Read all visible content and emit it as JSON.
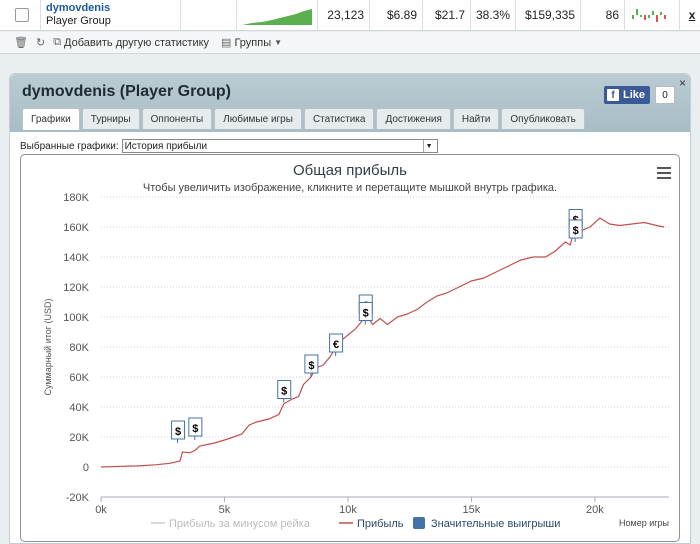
{
  "top_row": {
    "player_name": "dymovdenis",
    "player_group": "Player Group",
    "games": "23,123",
    "avg_buyin": "$6.89",
    "abi": "$21.7",
    "roi": "38.3%",
    "profit": "$159,335",
    "rating": "86",
    "close_link": "x"
  },
  "toolbar": {
    "add_stats": "Добавить другую статистику",
    "groups": "Группы"
  },
  "panel": {
    "title": "dymovdenis (Player Group)",
    "close": "×",
    "like_label": "Like",
    "like_count": "0",
    "tabs": [
      {
        "label": "Графики",
        "active": true
      },
      {
        "label": "Турниры"
      },
      {
        "label": "Оппоненты"
      },
      {
        "label": "Любимые игры"
      },
      {
        "label": "Статистика"
      },
      {
        "label": "Достижения"
      },
      {
        "label": "Найти"
      },
      {
        "label": "Опубликовать"
      }
    ],
    "selected_label": "Выбранные графики:",
    "selected_value": "История прибыли"
  },
  "chart_data": {
    "type": "line",
    "title": "Общая прибыль",
    "subtitle": "Чтобы увеличить изображение, кликните и перетащите мышкой внутрь графика.",
    "ylabel": "Суммарный итог (USD)",
    "xlabel": "Номер игры",
    "ylim": [
      -20000,
      180000
    ],
    "xlim": [
      0,
      23000
    ],
    "y_ticks": [
      "-20K",
      "0",
      "20K",
      "40K",
      "60K",
      "80K",
      "100K",
      "120K",
      "140K",
      "160K",
      "180K"
    ],
    "x_ticks": [
      "0k",
      "5k",
      "10k",
      "15k",
      "20k"
    ],
    "legend": [
      "Прибыль за минусом рейка",
      "Прибыль",
      "Значительные выигрыши"
    ],
    "series": [
      {
        "name": "Прибыль",
        "color": "#c0504d",
        "x": [
          0,
          800,
          1500,
          2200,
          2800,
          3200,
          3300,
          3600,
          3800,
          4000,
          4600,
          5200,
          5700,
          6000,
          6300,
          6800,
          7200,
          7400,
          7700,
          8000,
          8200,
          8500,
          8700,
          9000,
          9300,
          9500,
          9700,
          10000,
          10300,
          10600,
          10700,
          10800,
          11000,
          11300,
          11600,
          12000,
          12400,
          12800,
          13200,
          13600,
          14000,
          14500,
          15000,
          15500,
          16000,
          16500,
          17000,
          17500,
          18000,
          18400,
          18800,
          19000,
          19200,
          19300,
          19500,
          19800,
          20200,
          20600,
          21000,
          21500,
          22000,
          22500,
          22800
        ],
        "y": [
          0,
          500,
          700,
          1500,
          2500,
          4000,
          10000,
          9500,
          11000,
          14000,
          16000,
          19000,
          22000,
          28000,
          30000,
          32000,
          35000,
          42000,
          45000,
          47000,
          55000,
          60000,
          66000,
          68000,
          74000,
          80000,
          84000,
          88000,
          92000,
          98000,
          106000,
          100000,
          95000,
          99000,
          95000,
          100000,
          102000,
          105000,
          110000,
          114000,
          116000,
          120000,
          124000,
          126000,
          130000,
          134000,
          138000,
          140000,
          140000,
          144000,
          150000,
          148000,
          160000,
          157000,
          158000,
          160000,
          166000,
          162000,
          161000,
          162000,
          163000,
          161000,
          160000
        ]
      }
    ],
    "big_wins": [
      {
        "x": 3100,
        "y": 16000,
        "symbol": "$"
      },
      {
        "x": 3800,
        "y": 18000,
        "symbol": "$"
      },
      {
        "x": 7400,
        "y": 43000,
        "symbol": "$"
      },
      {
        "x": 8500,
        "y": 60000,
        "symbol": "$"
      },
      {
        "x": 9500,
        "y": 74000,
        "symbol": "€"
      },
      {
        "x": 10700,
        "y": 100000,
        "symbol": "€"
      },
      {
        "x": 10700,
        "y": 95000,
        "symbol": "$"
      },
      {
        "x": 19200,
        "y": 157000,
        "symbol": "$"
      },
      {
        "x": 19200,
        "y": 150000,
        "symbol": "$"
      }
    ]
  }
}
